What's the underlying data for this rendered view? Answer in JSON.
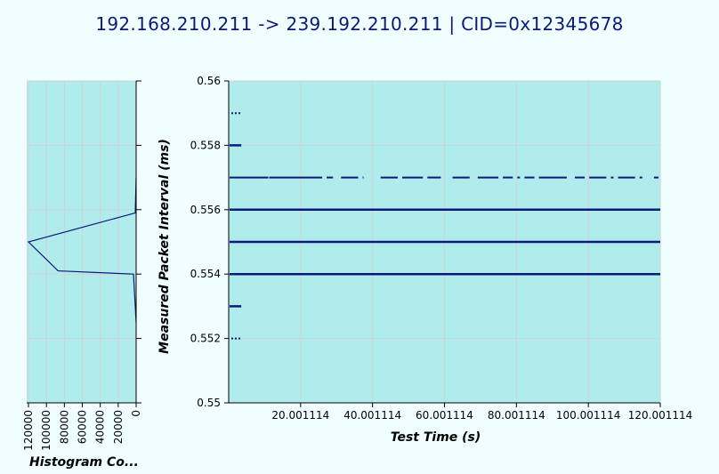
{
  "title": "192.168.210.211  ->  239.192.210.211  |  CID=0x12345678",
  "colors": {
    "background": "#f0feff",
    "plot_area": "#b0ecec",
    "series": "#0a1a7a",
    "grid": "#d2d2d2"
  },
  "chart_data": [
    {
      "type": "scatter",
      "title": "192.168.210.211  ->  239.192.210.211  |  CID=0x12345678",
      "xlabel": "Test Time (s)",
      "ylabel": "Measured Packet Interval (ms)",
      "xlim": [
        0,
        120.001114
      ],
      "ylim": [
        0.55,
        0.56
      ],
      "x_ticks": [
        "20.001114",
        "40.001114",
        "60.001114",
        "80.001114",
        "100.001114",
        "120.001114"
      ],
      "y_ticks": [
        "0.55",
        "0.552",
        "0.554",
        "0.556",
        "0.558",
        "0.56"
      ],
      "grid": true,
      "series": [
        {
          "points_description_segments": [
            {
              "y": 0.559,
              "x_ranges": [
                [
                  0.5,
                  3.5
                ]
              ],
              "style": "dotted"
            },
            {
              "y": 0.558,
              "x_ranges": [
                [
                  0,
                  3.5
                ]
              ],
              "style": "solid"
            },
            {
              "y": 0.557,
              "x_ranges": [
                [
                  0,
                  11
                ],
                [
                  11,
                  26
                ],
                [
                  27,
                  29
                ],
                [
                  31,
                  36
                ],
                [
                  37,
                  37.5
                ],
                [
                  42,
                  47
                ],
                [
                  48,
                  54
                ],
                [
                  55,
                  59
                ],
                [
                  62,
                  67
                ],
                [
                  69,
                  75
                ],
                [
                  76,
                  79
                ],
                [
                  80,
                  81
                ],
                [
                  82,
                  85
                ],
                [
                  86,
                  94
                ],
                [
                  96,
                  99
                ],
                [
                  100,
                  105
                ],
                [
                  106,
                  107
                ],
                [
                  108,
                  113
                ],
                [
                  114,
                  115
                ],
                [
                  118,
                  119.5
                ]
              ],
              "style": "dashed"
            },
            {
              "y": 0.556,
              "x_ranges": [
                [
                  0,
                  120.001114
                ]
              ],
              "style": "solid"
            },
            {
              "y": 0.555,
              "x_ranges": [
                [
                  0,
                  120.001114
                ]
              ],
              "style": "solid"
            },
            {
              "y": 0.554,
              "x_ranges": [
                [
                  0,
                  120.001114
                ]
              ],
              "style": "solid"
            },
            {
              "y": 0.553,
              "x_ranges": [
                [
                  0,
                  3.5
                ]
              ],
              "style": "solid"
            },
            {
              "y": 0.552,
              "x_ranges": [
                [
                  0.5,
                  3.5
                ]
              ],
              "style": "dotted"
            }
          ]
        }
      ]
    },
    {
      "type": "line",
      "title": "Histogram Co...",
      "x_ticks": [
        "120000",
        "100000",
        "80000",
        "60000",
        "40000",
        "20000",
        "0"
      ],
      "xlim": [
        0,
        122000
      ],
      "x_reversed": true,
      "ylim": [
        0.55,
        0.56
      ],
      "grid": true,
      "series": [
        {
          "x": [
            0,
            0,
            1000,
            120000,
            87000,
            3000,
            1000,
            0
          ],
          "y": [
            0.557,
            0.557,
            0.5559,
            0.555,
            0.5541,
            0.554,
            0.553,
            0.5525
          ]
        }
      ]
    }
  ]
}
